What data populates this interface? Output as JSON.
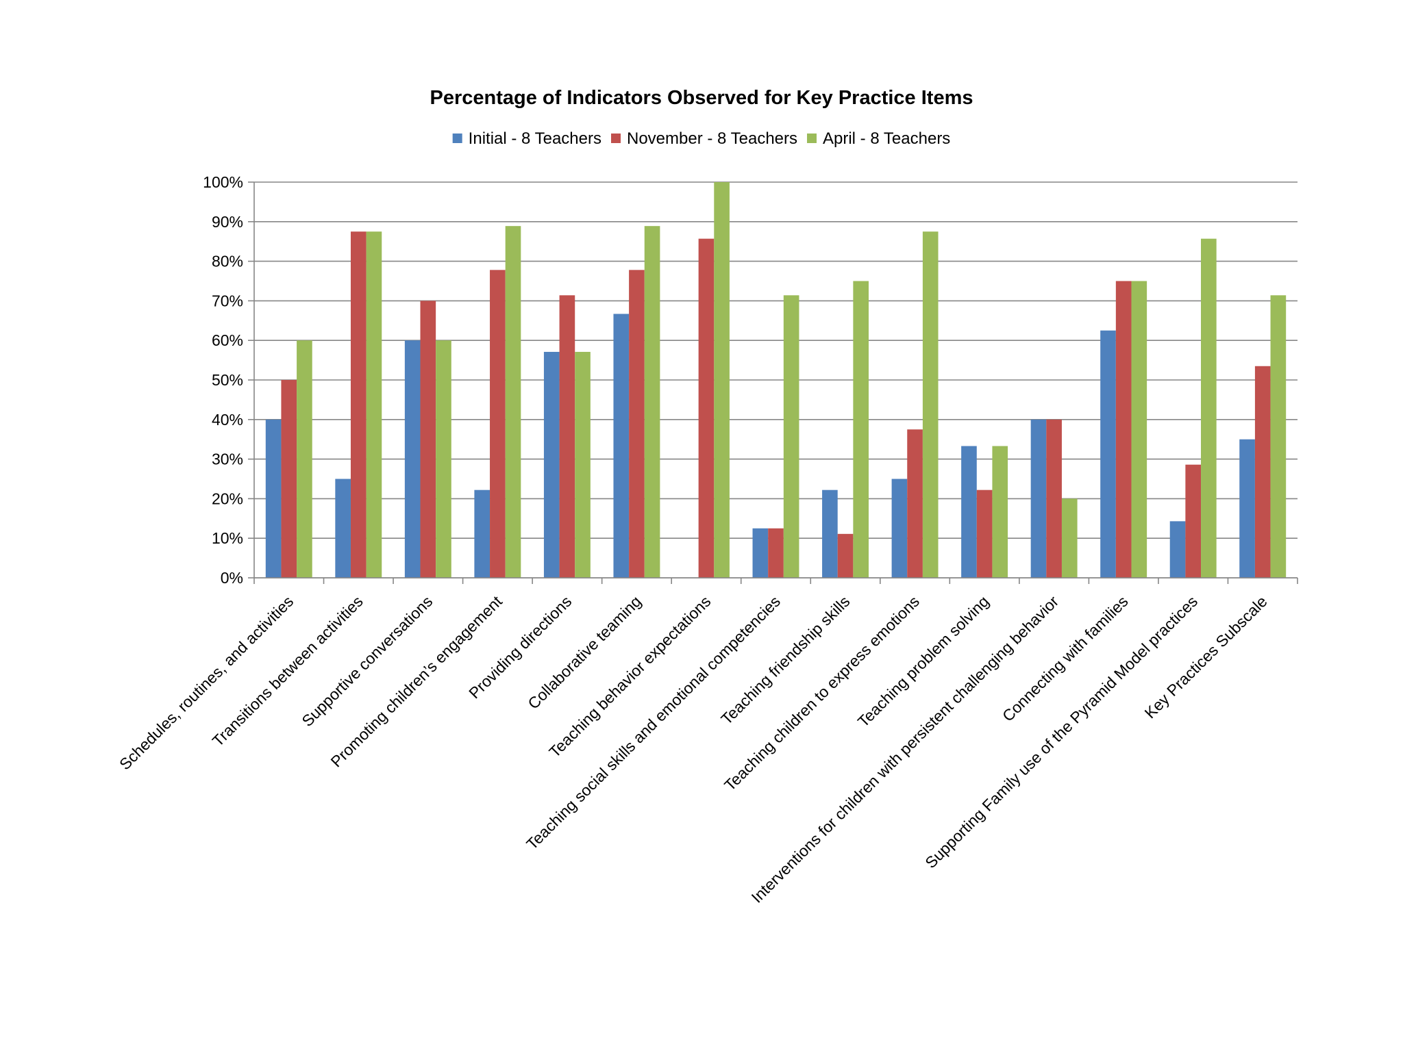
{
  "chart_data": {
    "type": "bar",
    "title": "Percentage of Indicators Observed for Key Practice Items",
    "xlabel": "",
    "ylabel": "",
    "ylim": [
      0,
      100
    ],
    "y_ticks": [
      0,
      10,
      20,
      30,
      40,
      50,
      60,
      70,
      80,
      90,
      100
    ],
    "y_tick_labels": [
      "0%",
      "10%",
      "20%",
      "30%",
      "40%",
      "50%",
      "60%",
      "70%",
      "80%",
      "90%",
      "100%"
    ],
    "grid": true,
    "legend_position": "top",
    "categories": [
      "Schedules, routines, and activities",
      "Transitions between activities",
      "Supportive conversations",
      "Promoting children’s engagement",
      "Providing directions",
      "Collaborative teaming",
      "Teaching behavior expectations",
      "Teaching social skills and emotional competencies",
      "Teaching friendship skills",
      "Teaching children to express emotions",
      "Teaching problem solving",
      "Interventions for children with persistent challenging behavior",
      "Connecting with families",
      "Supporting Family use of the Pyramid Model practices",
      "Key Practices Subscale"
    ],
    "series": [
      {
        "name": "Initial  - 8 Teachers",
        "color": "#4f81bd",
        "values": [
          40,
          25,
          60,
          22.2,
          57.1,
          66.7,
          0,
          12.5,
          22.2,
          25,
          33.3,
          40,
          62.5,
          14.3,
          35
        ]
      },
      {
        "name": "November  - 8 Teachers",
        "color": "#c0504d",
        "values": [
          50,
          87.5,
          70,
          77.8,
          71.4,
          77.8,
          85.7,
          12.5,
          11.1,
          37.5,
          22.2,
          40,
          75,
          28.6,
          53.5
        ]
      },
      {
        "name": "April - 8 Teachers",
        "color": "#9bbb59",
        "values": [
          60,
          87.5,
          60,
          88.9,
          57.1,
          88.9,
          100,
          71.4,
          75,
          87.5,
          33.3,
          20,
          75,
          85.7,
          71.4
        ]
      }
    ],
    "colors": {
      "gridline": "#868686",
      "axis": "#868686"
    }
  }
}
